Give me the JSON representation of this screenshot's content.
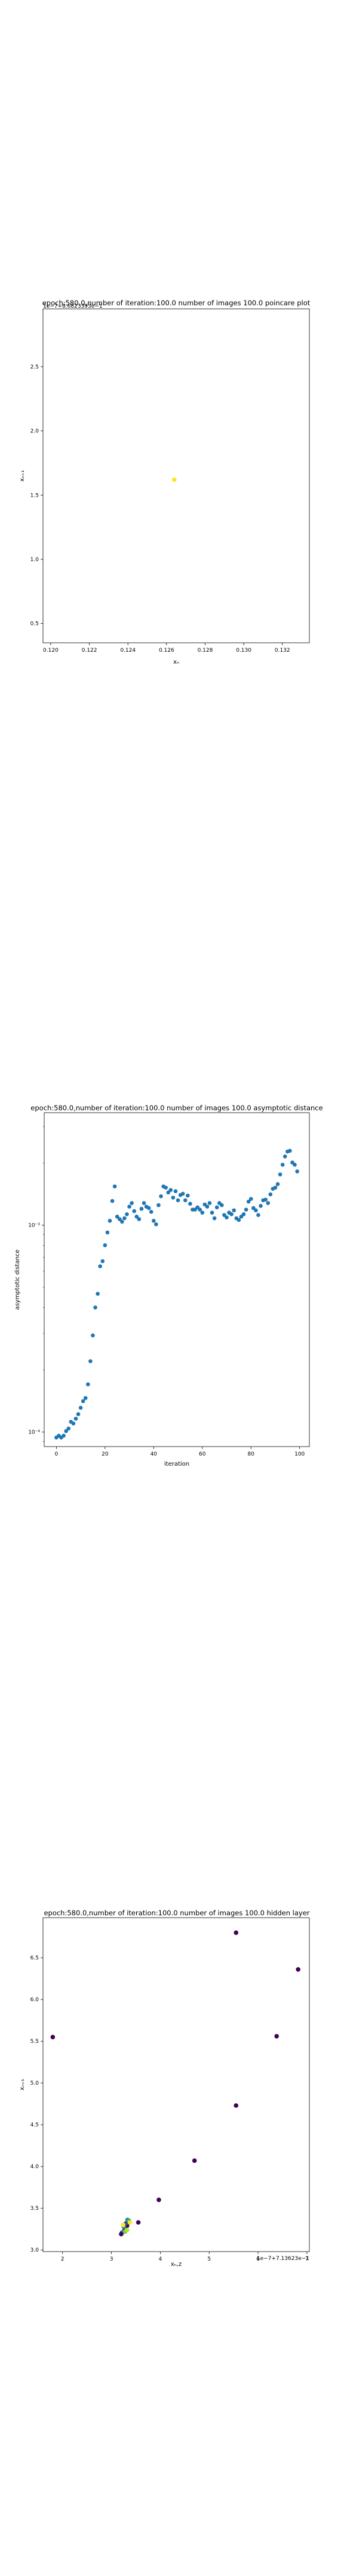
{
  "chart_data": [
    {
      "type": "scatter",
      "title": "epoch:580.0,number of iteration:100.0 number of images 100.0 poincare plot",
      "offset_text": "1e−7+8.6823393e−1",
      "xlabel": "xₙ",
      "ylabel": "xₙ₊₁",
      "xlim": [
        0.1196,
        0.1334
      ],
      "ylim": [
        0.35,
        2.95
      ],
      "xticks": [
        "0.120",
        "0.122",
        "0.124",
        "0.126",
        "0.128",
        "0.130",
        "0.132"
      ],
      "xtick_values": [
        0.12,
        0.122,
        0.124,
        0.126,
        0.128,
        0.13,
        0.132
      ],
      "yticks": [
        "0.5",
        "1.0",
        "1.5",
        "2.0",
        "2.5"
      ],
      "ytick_values": [
        0.5,
        1.0,
        1.5,
        2.0,
        2.5
      ],
      "points": [
        [
          0.1264,
          1.62
        ]
      ],
      "colors": [
        "#fde725"
      ]
    },
    {
      "type": "scatter",
      "title": "epoch:580.0,number of iteration:100.0  number of images 100.0 asymptotic distance",
      "xlabel": "iteration",
      "ylabel": "asymptotic distance",
      "yscale": "log",
      "xlim": [
        -5,
        104
      ],
      "ylim": [
        8.5e-05,
        0.0035
      ],
      "xticks": [
        "0",
        "20",
        "40",
        "60",
        "80",
        "100"
      ],
      "xtick_values": [
        0,
        20,
        40,
        60,
        80,
        100
      ],
      "yticks": [
        "10⁻⁴",
        "10⁻³"
      ],
      "ytick_values": [
        0.0001,
        0.001
      ],
      "color": "#1f77b4",
      "x": [
        0,
        1,
        2,
        3,
        4,
        5,
        6,
        7,
        8,
        9,
        10,
        11,
        12,
        13,
        14,
        15,
        16,
        17,
        18,
        19,
        20,
        21,
        22,
        23,
        24,
        25,
        26,
        27,
        28,
        29,
        30,
        31,
        32,
        33,
        34,
        35,
        36,
        37,
        38,
        39,
        40,
        41,
        42,
        43,
        44,
        45,
        46,
        47,
        48,
        49,
        50,
        51,
        52,
        53,
        54,
        55,
        56,
        57,
        58,
        59,
        60,
        61,
        62,
        63,
        64,
        65,
        66,
        67,
        68,
        69,
        70,
        71,
        72,
        73,
        74,
        75,
        76,
        77,
        78,
        79,
        80,
        81,
        82,
        83,
        84,
        85,
        86,
        87,
        88,
        89,
        90,
        91,
        92,
        93,
        94,
        95,
        96,
        97,
        98,
        99
      ],
      "values": [
        9.4e-05,
        9.6e-05,
        9.4e-05,
        9.6e-05,
        0.000101,
        0.000104,
        0.000112,
        0.00011,
        0.000116,
        0.000122,
        0.000131,
        0.000141,
        0.000146,
        0.00017,
        0.00022,
        0.000293,
        0.0004,
        0.000466,
        0.000633,
        0.00067,
        0.0008,
        0.000922,
        0.00105,
        0.00131,
        0.00154,
        0.0011,
        0.00107,
        0.00104,
        0.00108,
        0.00113,
        0.00123,
        0.00128,
        0.00117,
        0.0011,
        0.00107,
        0.0012,
        0.00128,
        0.00123,
        0.00121,
        0.00116,
        0.00105,
        0.00101,
        0.00125,
        0.00138,
        0.00154,
        0.00152,
        0.00144,
        0.00148,
        0.00136,
        0.00146,
        0.00132,
        0.0014,
        0.00142,
        0.00132,
        0.00139,
        0.00127,
        0.00119,
        0.00119,
        0.00122,
        0.00119,
        0.00115,
        0.00126,
        0.00123,
        0.00128,
        0.00115,
        0.00108,
        0.00122,
        0.00128,
        0.00125,
        0.00112,
        0.00109,
        0.00115,
        0.00113,
        0.00118,
        0.00108,
        0.00106,
        0.0011,
        0.00113,
        0.00119,
        0.0013,
        0.00134,
        0.00121,
        0.00118,
        0.00112,
        0.00124,
        0.00132,
        0.00133,
        0.00128,
        0.00141,
        0.0015,
        0.00152,
        0.00158,
        0.00176,
        0.00196,
        0.00215,
        0.00227,
        0.00229,
        0.00201,
        0.00196,
        0.00182
      ]
    },
    {
      "type": "scatter",
      "title": "epoch:580.0,number of iteration:100.0  number of images 100.0 hidden layer",
      "offset_text": "1e−7+7.13623e−1",
      "xlabel": "xₙ,z",
      "ylabel": "xₙ₊₁",
      "xlim": [
        1.6,
        7.05
      ],
      "ylim": [
        2.98,
        6.98
      ],
      "xticks": [
        "2",
        "3",
        "4",
        "5",
        "6",
        "7"
      ],
      "xtick_values": [
        2,
        3,
        4,
        5,
        6,
        7
      ],
      "yticks": [
        "3.0",
        "3.5",
        "4.0",
        "4.5",
        "5.0",
        "5.5",
        "6.0",
        "6.5"
      ],
      "ytick_values": [
        3.0,
        3.5,
        4.0,
        4.5,
        5.0,
        5.5,
        6.0,
        6.5
      ],
      "points": [
        [
          1.8,
          5.55
        ],
        [
          5.55,
          6.8
        ],
        [
          6.82,
          6.36
        ],
        [
          6.38,
          5.56
        ],
        [
          5.55,
          4.73
        ],
        [
          4.7,
          4.07
        ],
        [
          3.97,
          3.6
        ],
        [
          3.55,
          3.33
        ],
        [
          3.32,
          3.29
        ],
        [
          3.27,
          3.25
        ],
        [
          3.3,
          3.32
        ],
        [
          3.22,
          3.21
        ],
        [
          3.33,
          3.36
        ],
        [
          3.25,
          3.28
        ],
        [
          3.36,
          3.35
        ],
        [
          3.28,
          3.22
        ],
        [
          3.32,
          3.24
        ],
        [
          3.24,
          3.3
        ],
        [
          3.38,
          3.33
        ],
        [
          3.2,
          3.19
        ]
      ],
      "colors": [
        "#440154",
        "#440154",
        "#440154",
        "#440154",
        "#440154",
        "#440154",
        "#440154",
        "#440154",
        "#440154",
        "#482878",
        "#3e4989",
        "#31688e",
        "#26828e",
        "#1f9e89",
        "#35b779",
        "#6ece58",
        "#b5de2b",
        "#fde725",
        "#fde725",
        "#440154"
      ]
    }
  ]
}
